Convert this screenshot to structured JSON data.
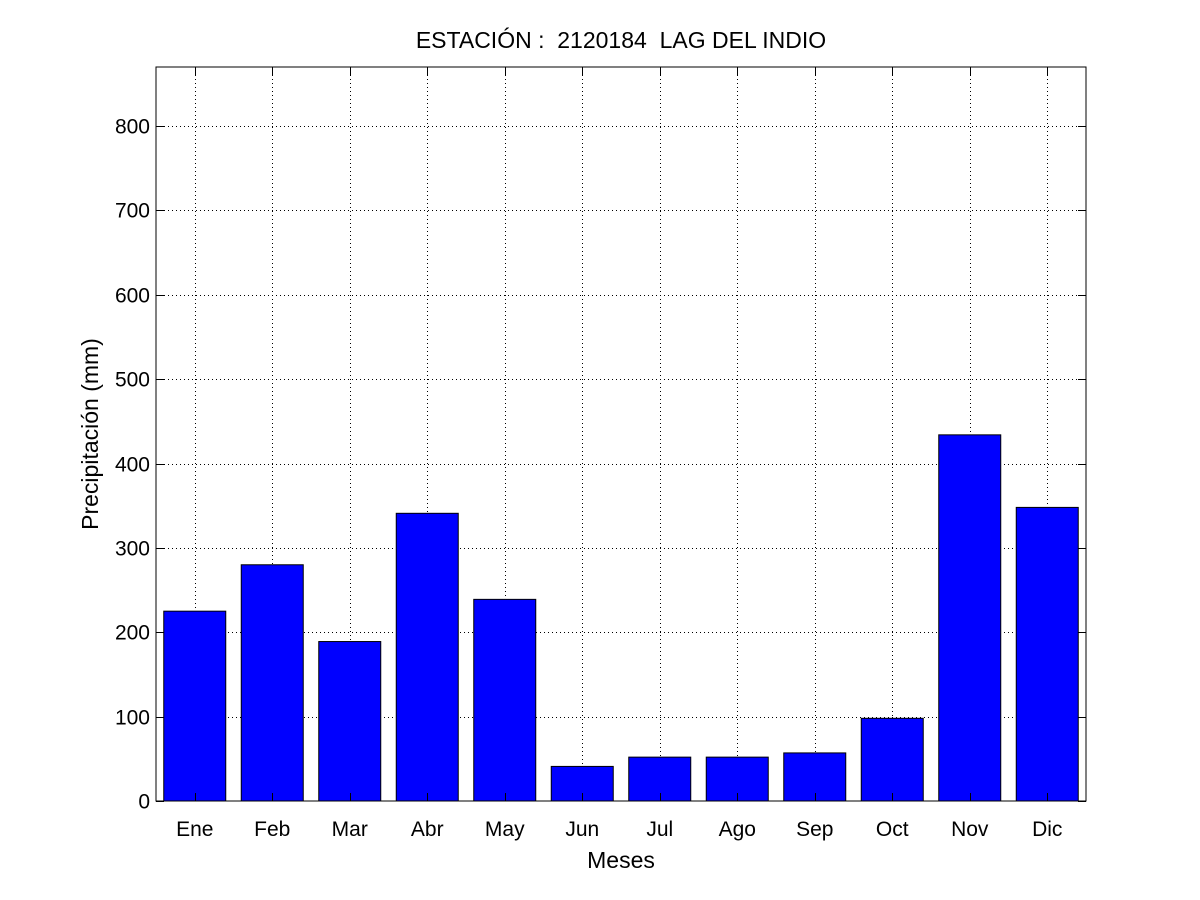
{
  "chart_data": {
    "type": "bar",
    "title": "ESTACIÓN :  2120184  LAG DEL INDIO",
    "xlabel": "Meses",
    "ylabel": "Precipitación (mm)",
    "categories": [
      "Ene",
      "Feb",
      "Mar",
      "Abr",
      "May",
      "Jun",
      "Jul",
      "Ago",
      "Sep",
      "Oct",
      "Nov",
      "Dic"
    ],
    "values": [
      225,
      280,
      189,
      341,
      239,
      41,
      52,
      52,
      57,
      98,
      434,
      348
    ],
    "ylim": [
      0,
      870
    ],
    "yticks": [
      0,
      100,
      200,
      300,
      400,
      500,
      600,
      700,
      800
    ],
    "grid": true,
    "bar_color": "#0000ff"
  }
}
